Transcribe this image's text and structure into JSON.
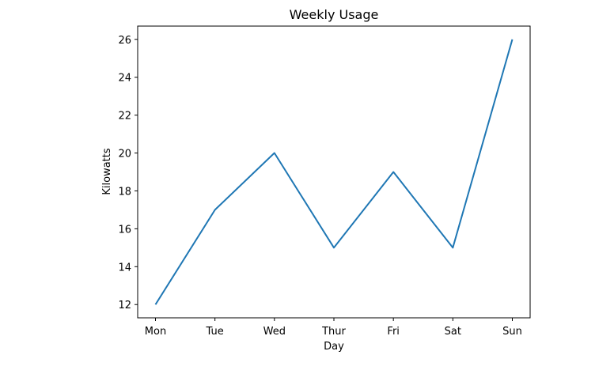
{
  "chart_data": {
    "type": "line",
    "title": "Weekly Usage",
    "xlabel": "Day",
    "ylabel": "Kilowatts",
    "categories": [
      "Mon",
      "Tue",
      "Wed",
      "Thur",
      "Fri",
      "Sat",
      "Sun"
    ],
    "series": [
      {
        "values": [
          12,
          17,
          20,
          15,
          19,
          15,
          26
        ],
        "color": "#1f77b4"
      }
    ],
    "ylim": [
      11.3,
      26.7
    ],
    "yticks": [
      12,
      14,
      16,
      18,
      20,
      22,
      24,
      26
    ],
    "grid": false,
    "legend": "none"
  }
}
